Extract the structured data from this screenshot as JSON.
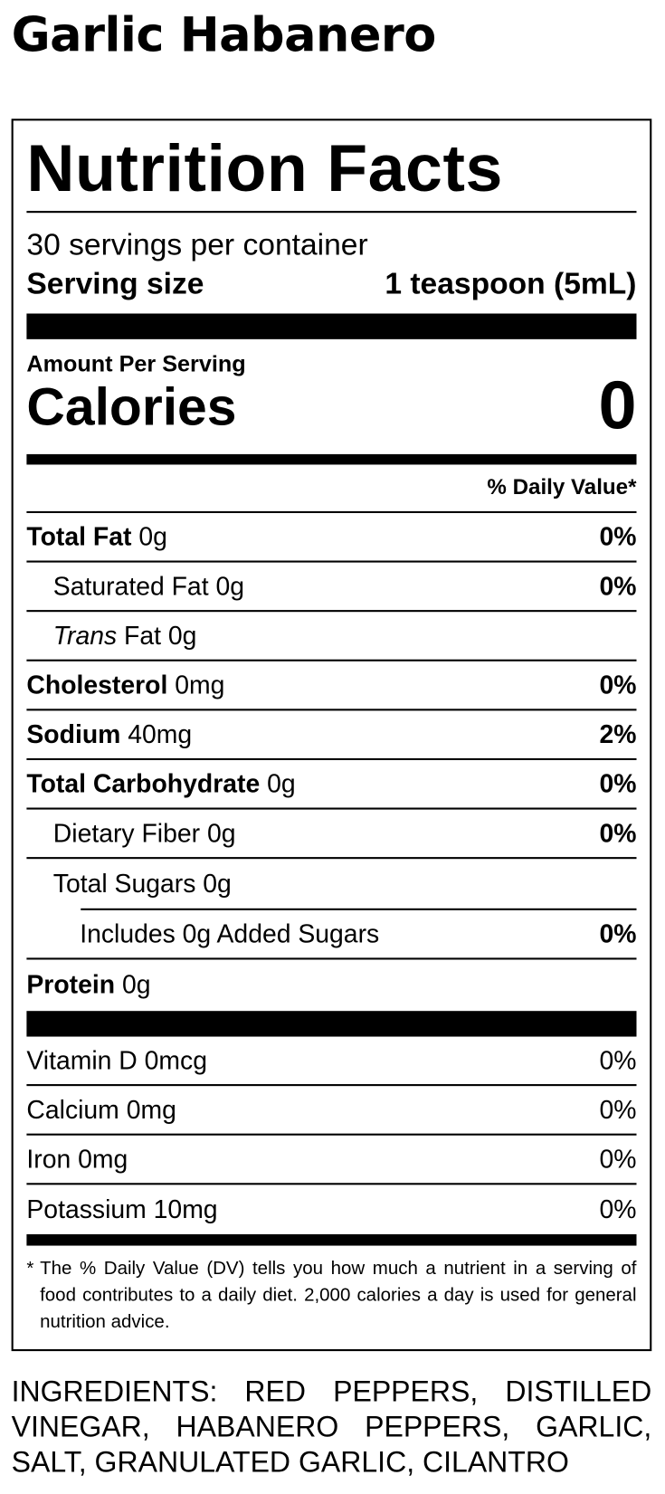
{
  "product_name": "Garlic Habanero",
  "label": {
    "title": "Nutrition Facts",
    "servings_per_container": "30 servings per container",
    "serving_size_label": "Serving size",
    "serving_size_value": "1 teaspoon (5mL)",
    "amount_per_serving": "Amount Per Serving",
    "calories_label": "Calories",
    "calories_value": "0",
    "daily_value_header": "% Daily Value*",
    "nutrients": [
      {
        "name": "Total Fat",
        "amount": "0g",
        "dv": "0%"
      },
      {
        "name": "Saturated Fat",
        "amount": "0g",
        "dv": "0%"
      },
      {
        "name": "Trans",
        "suffix": "Fat",
        "amount": "0g",
        "dv": ""
      },
      {
        "name": "Cholesterol",
        "amount": "0mg",
        "dv": "0%"
      },
      {
        "name": "Sodium",
        "amount": "40mg",
        "dv": "2%"
      },
      {
        "name": "Total Carbohydrate",
        "amount": "0g",
        "dv": "0%"
      },
      {
        "name": "Dietary Fiber",
        "amount": "0g",
        "dv": "0%"
      },
      {
        "name": "Total Sugars",
        "amount": "0g",
        "dv": ""
      },
      {
        "name": "Includes 0g Added Sugars",
        "amount": "",
        "dv": "0%"
      },
      {
        "name": "Protein",
        "amount": "0g",
        "dv": ""
      }
    ],
    "vitamins": [
      {
        "name": "Vitamin D",
        "amount": "0mcg",
        "dv": "0%"
      },
      {
        "name": "Calcium",
        "amount": "0mg",
        "dv": "0%"
      },
      {
        "name": "Iron",
        "amount": "0mg",
        "dv": "0%"
      },
      {
        "name": "Potassium",
        "amount": "10mg",
        "dv": "0%"
      }
    ],
    "footnote_mark": "*",
    "footnote": "The % Daily Value (DV) tells you how much a nutrient in a serving of food contributes to a daily diet. 2,000 calories a day is used for general nutrition advice."
  },
  "ingredients": "INGREDIENTS: RED PEPPERS, DISTILLED VINEGAR, HABANERO PEPPERS, GARLIC, SALT, GRANULATED GARLIC, CILANTRO"
}
